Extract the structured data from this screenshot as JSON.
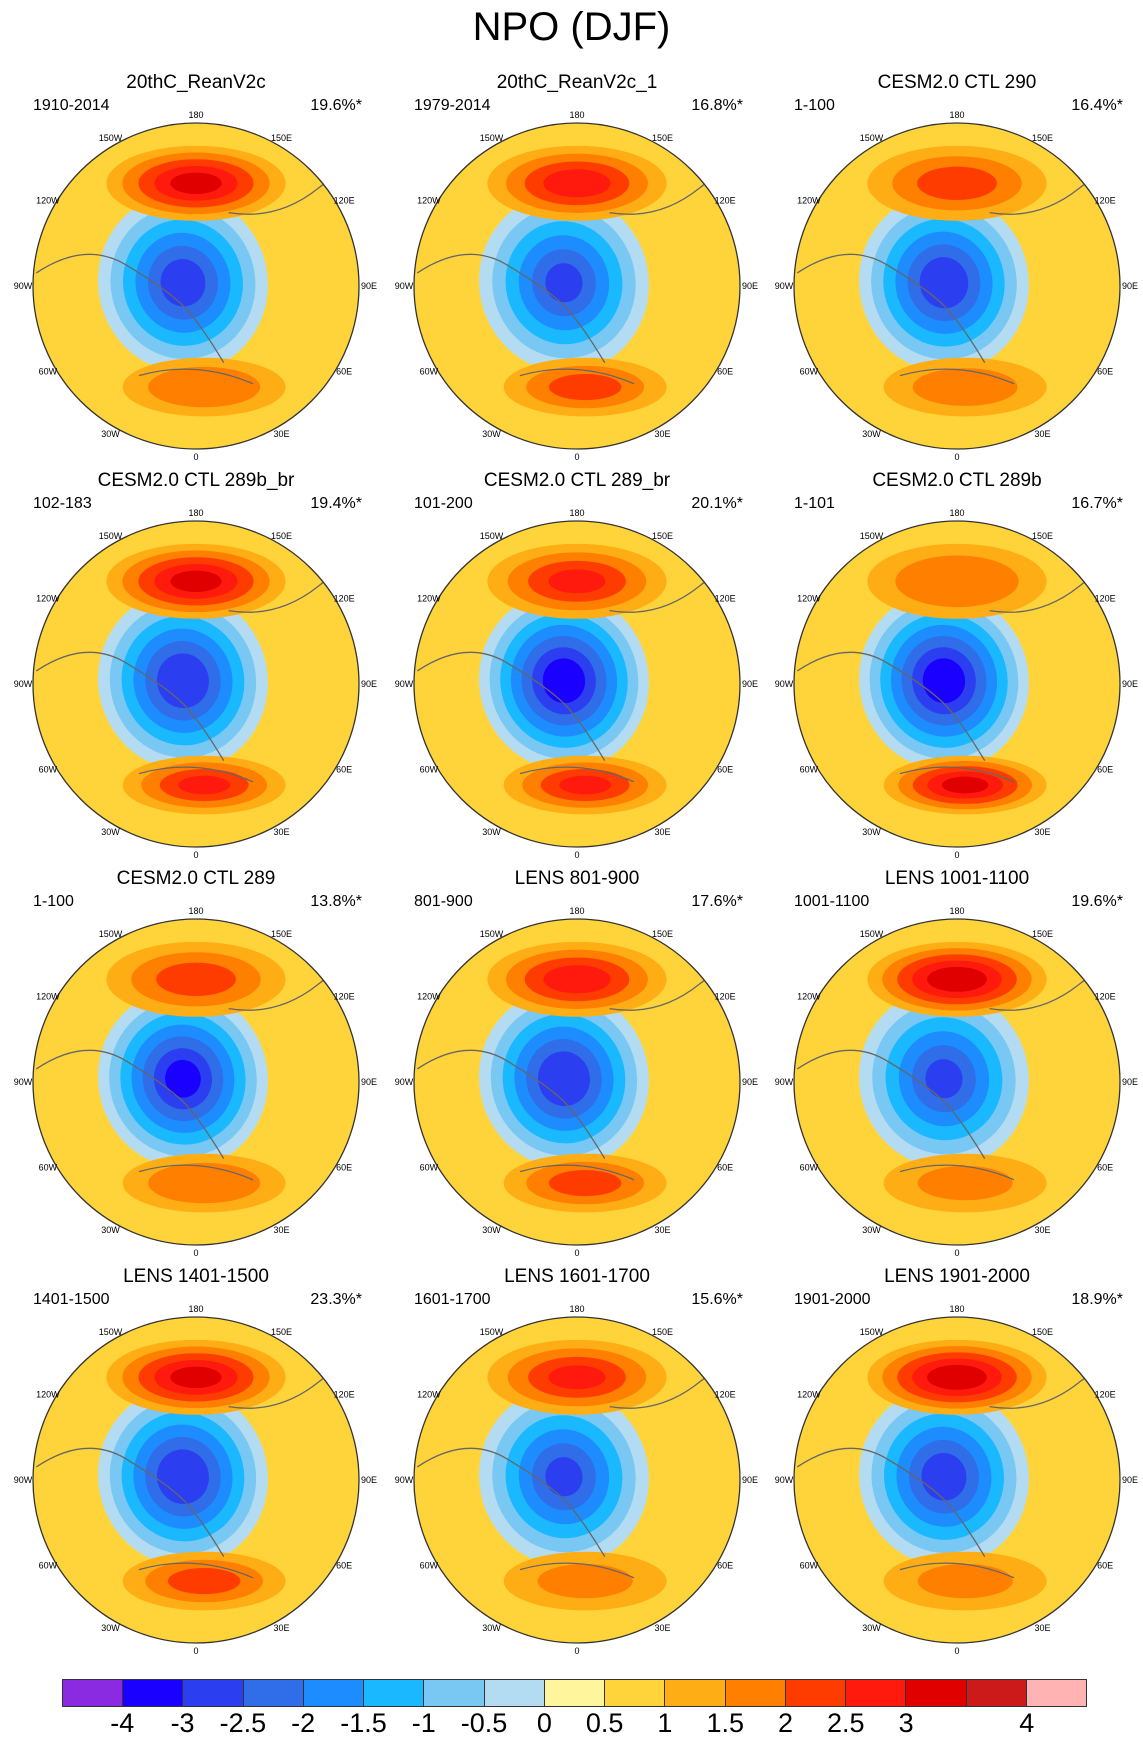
{
  "title": "NPO (DJF)",
  "lon_labels": [
    "180",
    "150E",
    "120E",
    "90E",
    "60E",
    "30E",
    "0",
    "30W",
    "60W",
    "90W",
    "120W",
    "150W"
  ],
  "panels": [
    {
      "title": "20thC_ReanV2c",
      "period": "1910-2014",
      "variance": "19.6%*",
      "anomaly": {
        "pacific_high": 2.6,
        "arctic_low": -3.2,
        "atlantic_high": 1.4
      }
    },
    {
      "title": "20thC_ReanV2c_1",
      "period": "1979-2014",
      "variance": "16.8%*",
      "anomaly": {
        "pacific_high": 2.2,
        "arctic_low": -3.0,
        "atlantic_high": 1.6
      }
    },
    {
      "title": "CESM2.0 CTL 290",
      "period": "1-100",
      "variance": "16.4%*",
      "anomaly": {
        "pacific_high": 1.6,
        "arctic_low": -3.3,
        "atlantic_high": 1.2
      }
    },
    {
      "title": "CESM2.0 CTL 289b_br",
      "period": "102-183",
      "variance": "19.4%*",
      "anomaly": {
        "pacific_high": 2.6,
        "arctic_low": -3.4,
        "atlantic_high": 2.0
      }
    },
    {
      "title": "CESM2.0 CTL 289_br",
      "period": "101-200",
      "variance": "20.1%*",
      "anomaly": {
        "pacific_high": 2.0,
        "arctic_low": -3.8,
        "atlantic_high": 2.0
      }
    },
    {
      "title": "CESM2.0 CTL 289b",
      "period": "1-101",
      "variance": "16.7%*",
      "anomaly": {
        "pacific_high": 1.4,
        "arctic_low": -3.8,
        "atlantic_high": 2.6
      }
    },
    {
      "title": "CESM2.0 CTL 289",
      "period": "1-100",
      "variance": "13.8%*",
      "anomaly": {
        "pacific_high": 1.6,
        "arctic_low": -3.6,
        "atlantic_high": 1.4
      }
    },
    {
      "title": "LENS 801-900",
      "period": "801-900",
      "variance": "17.6%*",
      "anomaly": {
        "pacific_high": 2.2,
        "arctic_low": -3.4,
        "atlantic_high": 1.6
      }
    },
    {
      "title": "LENS 1001-1100",
      "period": "1001-1100",
      "variance": "19.6%*",
      "anomaly": {
        "pacific_high": 2.8,
        "arctic_low": -3.0,
        "atlantic_high": 1.0
      }
    },
    {
      "title": "LENS 1401-1500",
      "period": "1401-1500",
      "variance": "23.3%*",
      "anomaly": {
        "pacific_high": 2.6,
        "arctic_low": -3.4,
        "atlantic_high": 1.6
      }
    },
    {
      "title": "LENS 1601-1700",
      "period": "1601-1700",
      "variance": "15.6%*",
      "anomaly": {
        "pacific_high": 2.0,
        "arctic_low": -3.0,
        "atlantic_high": 1.0
      }
    },
    {
      "title": "LENS 1901-2000",
      "period": "1901-2000",
      "variance": "18.9%*",
      "anomaly": {
        "pacific_high": 2.8,
        "arctic_low": -3.2,
        "atlantic_high": 1.0
      }
    }
  ],
  "colorbar": {
    "colors": [
      "#8a2be2",
      "#1a00ff",
      "#2b3ff0",
      "#2f6ee8",
      "#1c8cff",
      "#1ab8ff",
      "#79c8f3",
      "#b3dcf2",
      "#fff59d",
      "#ffd43b",
      "#ffad14",
      "#ff7f00",
      "#ff3c00",
      "#ff1a0d",
      "#e00000",
      "#cc1a1a",
      "#ffb3b3"
    ],
    "labels": [
      "-4",
      "-3",
      "-2.5",
      "-2",
      "-1.5",
      "-1",
      "-0.5",
      "0",
      "0.5",
      "1",
      "1.5",
      "2",
      "2.5",
      "3",
      "4"
    ]
  }
}
